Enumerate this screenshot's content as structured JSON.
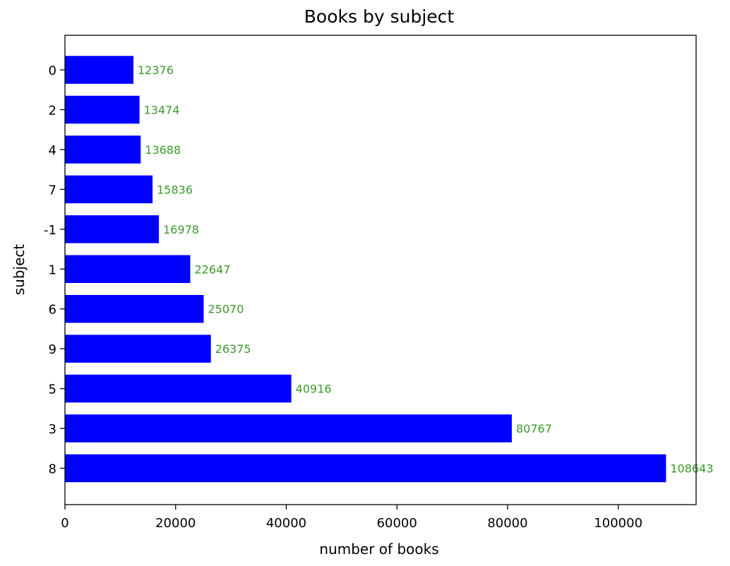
{
  "chart_data": {
    "type": "bar",
    "orientation": "horizontal",
    "title": "Books by subject",
    "xlabel": "number of books",
    "ylabel": "subject",
    "categories": [
      "0",
      "2",
      "4",
      "7",
      "-1",
      "1",
      "6",
      "9",
      "5",
      "3",
      "8"
    ],
    "values": [
      12376,
      13474,
      13688,
      15836,
      16978,
      22647,
      25070,
      26375,
      40916,
      80767,
      108643
    ],
    "data_labels": [
      "12376",
      "13474",
      "13688",
      "15836",
      "16978",
      "22647",
      "25070",
      "26375",
      "40916",
      "80767",
      "108643"
    ],
    "xlim": [
      0,
      114075
    ],
    "xticks": [
      0,
      20000,
      40000,
      60000,
      80000,
      100000
    ],
    "xtick_labels": [
      "0",
      "20000",
      "40000",
      "60000",
      "80000",
      "100000"
    ],
    "grid": false,
    "legend": "none",
    "bar_color": "#0000ff",
    "label_color": "#3a9a2a"
  }
}
